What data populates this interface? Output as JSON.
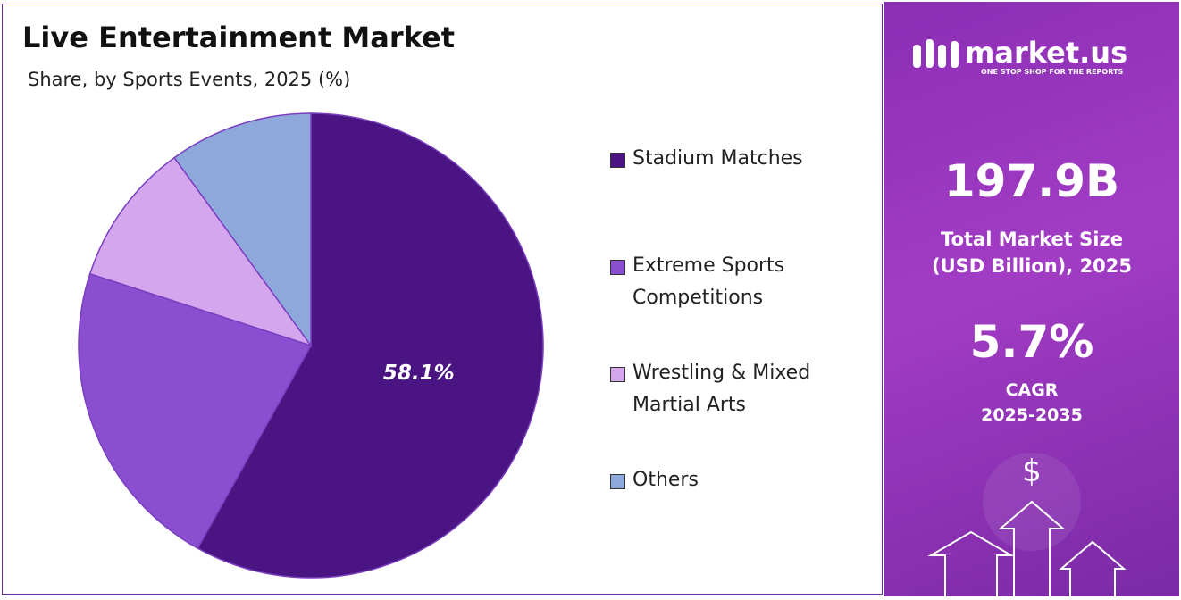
{
  "chart_data": {
    "type": "pie",
    "title": "Live Entertainment Market",
    "subtitle": "Share, by Sports Events, 2025 (%)",
    "categories": [
      "Stadium Matches",
      "Extreme Sports Competitions",
      "Wrestling & Mixed Martial Arts",
      "Others"
    ],
    "values": [
      58.1,
      21.9,
      10,
      10
    ],
    "value_labels": [
      "58.1%",
      null,
      null,
      null
    ],
    "colors": [
      "#4a1582",
      "#8a4fd0",
      "#d4a6ee",
      "#8fa8dc"
    ],
    "legend": "right"
  },
  "side_panel": {
    "brand": "market.us",
    "tagline": "ONE STOP SHOP FOR THE REPORTS",
    "market_size": "197.9B",
    "market_size_label_1": "Total Market Size",
    "market_size_label_2": "(USD Billion), 2025",
    "cagr": "5.7%",
    "cagr_label": "CAGR",
    "cagr_period": "2025-2035",
    "icon": "$"
  }
}
